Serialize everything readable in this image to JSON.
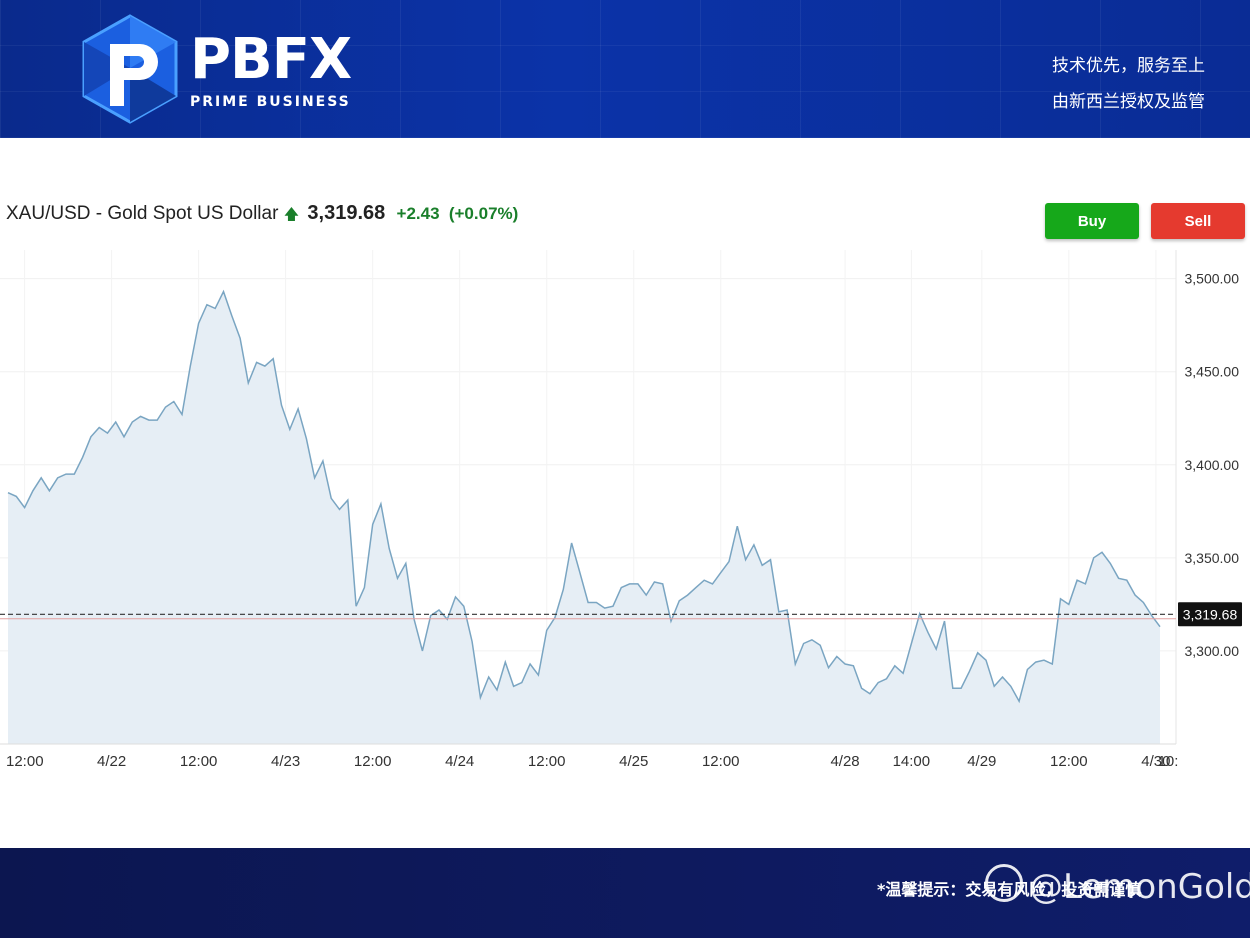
{
  "header": {
    "brand_name": "PBFX",
    "brand_tag": "PRIME BUSINESS",
    "slogan_line1": "技术优先，服务至上",
    "slogan_line2": "由新西兰授权及监管"
  },
  "instrument": {
    "title": "XAU/USD - Gold Spot US Dollar",
    "arrow": "🡅",
    "price": "3,319.68",
    "change": "+2.43",
    "change_pct": "(+0.07%)"
  },
  "actions": {
    "buy_label": "Buy",
    "sell_label": "Sell"
  },
  "footer": {
    "disclaimer": "*温馨提示：交易有风险，投资需谨慎",
    "watermark": "@LemonGold"
  },
  "colors": {
    "line": "#7aa5c2",
    "fill": "#e6eef5",
    "ref_line": "#e4a0a0",
    "price_tag_bg": "#111111",
    "up": "#1a7f2b"
  },
  "chart_data": {
    "type": "area",
    "title": "",
    "xlabel": "",
    "ylabel": "",
    "ylim": [
      3250,
      3510
    ],
    "yticks": [
      3300,
      3350,
      3400,
      3450,
      3500
    ],
    "ytick_labels": [
      "3,300.00",
      "3,350.00",
      "3,400.00",
      "3,450.00",
      "3,500.00"
    ],
    "x_range": [
      0,
      139
    ],
    "xticks": [
      {
        "label": "12:00",
        "x": 2
      },
      {
        "label": "4/22",
        "x": 12.5
      },
      {
        "label": "12:00",
        "x": 23
      },
      {
        "label": "4/23",
        "x": 33.5
      },
      {
        "label": "12:00",
        "x": 44
      },
      {
        "label": "4/24",
        "x": 54.5
      },
      {
        "label": "12:00",
        "x": 65
      },
      {
        "label": "4/25",
        "x": 75.5
      },
      {
        "label": "12:00",
        "x": 86
      },
      {
        "label": "4/28",
        "x": 101
      },
      {
        "label": "14:00",
        "x": 109
      },
      {
        "label": "4/29",
        "x": 117.5
      },
      {
        "label": "12:00",
        "x": 128
      },
      {
        "label": "4/30",
        "x": 138.5
      },
      {
        "label": "10:",
        "x": 145.5
      }
    ],
    "current_price": 3319.68,
    "current_price_label": "3,319.68",
    "reference_price": 3317.25,
    "grid": true,
    "values": [
      3385,
      3383,
      3377,
      3386,
      3393,
      3386,
      3393,
      3395,
      3395,
      3404,
      3415,
      3420,
      3417,
      3423,
      3415,
      3423,
      3426,
      3424,
      3424,
      3431,
      3434,
      3427,
      3453,
      3476,
      3486,
      3484,
      3493,
      3480,
      3468,
      3444,
      3455,
      3453,
      3457,
      3432,
      3419,
      3430,
      3414,
      3393,
      3402,
      3382,
      3376,
      3381,
      3324,
      3334,
      3368,
      3379,
      3355,
      3339,
      3347,
      3317,
      3300,
      3319,
      3322,
      3317,
      3329,
      3324,
      3305,
      3275,
      3286,
      3279,
      3294,
      3281,
      3283,
      3293,
      3287,
      3311,
      3318,
      3333,
      3358,
      3342,
      3326,
      3326,
      3323,
      3324,
      3334,
      3336,
      3336,
      3330,
      3337,
      3336,
      3316,
      3327,
      3330,
      3334,
      3338,
      3336,
      3342,
      3348,
      3367,
      3349,
      3357,
      3346,
      3349,
      3321,
      3322,
      3293,
      3304,
      3306,
      3303,
      3291,
      3297,
      3293,
      3292,
      3280,
      3277,
      3283,
      3285,
      3292,
      3288,
      3304,
      3320,
      3310,
      3301,
      3316,
      3280,
      3280,
      3289,
      3299,
      3295,
      3281,
      3286,
      3281,
      3273,
      3290,
      3294,
      3295,
      3293,
      3328,
      3325,
      3338,
      3336,
      3350,
      3353,
      3347,
      3339,
      3338,
      3330,
      3326,
      3319,
      3313
    ]
  }
}
